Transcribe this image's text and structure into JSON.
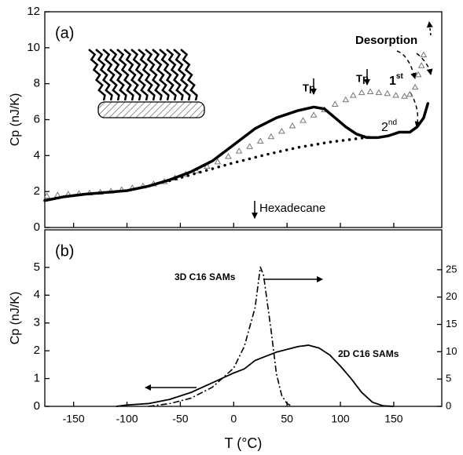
{
  "chart_data": [
    {
      "type": "line",
      "panel_label": "(a)",
      "ylabel": "Cp (nJ/K)",
      "xlim": [
        -177,
        195
      ],
      "xticks": [
        -150,
        -100,
        -50,
        0,
        50,
        100,
        150
      ],
      "ylim": [
        0,
        12
      ],
      "yticks": [
        0,
        2,
        4,
        6,
        8,
        10,
        12
      ],
      "annotations": [
        "Desorption",
        "Tp",
        "Tp",
        "Hexadecane"
      ],
      "first_label": {
        "base": "1",
        "sup": "st"
      },
      "second_label": {
        "base": "2",
        "sup": "nd"
      },
      "series": [
        {
          "style": "markers",
          "color": "#777777",
          "x": [
            -175,
            -165,
            -155,
            -145,
            -135,
            -125,
            -115,
            -105,
            -95,
            -85,
            -75,
            -65,
            -55,
            -45,
            -35,
            -25,
            -15,
            -5,
            5,
            15,
            25,
            35,
            45,
            55,
            65,
            75,
            85,
            95,
            105,
            112,
            120,
            128,
            136,
            144,
            152,
            160,
            165,
            170,
            173,
            176,
            178
          ],
          "values": [
            1.75,
            1.8,
            1.85,
            1.88,
            1.92,
            1.96,
            2.02,
            2.1,
            2.2,
            2.3,
            2.42,
            2.55,
            2.75,
            2.95,
            3.15,
            3.4,
            3.65,
            3.95,
            4.25,
            4.5,
            4.8,
            5.05,
            5.35,
            5.65,
            5.95,
            6.25,
            6.55,
            6.85,
            7.1,
            7.35,
            7.5,
            7.55,
            7.5,
            7.45,
            7.35,
            7.3,
            7.4,
            7.8,
            8.5,
            9.0,
            9.6
          ]
        },
        {
          "style": "thick",
          "color": "#000000",
          "x": [
            -177,
            -160,
            -140,
            -120,
            -100,
            -80,
            -60,
            -40,
            -20,
            0,
            20,
            40,
            60,
            75,
            85,
            95,
            105,
            115,
            125,
            135,
            145,
            155,
            165,
            172,
            178,
            182
          ],
          "values": [
            1.5,
            1.7,
            1.85,
            1.95,
            2.05,
            2.3,
            2.65,
            3.1,
            3.7,
            4.6,
            5.5,
            6.1,
            6.5,
            6.7,
            6.6,
            6.1,
            5.6,
            5.2,
            5.0,
            5.0,
            5.1,
            5.3,
            5.3,
            5.6,
            6.1,
            6.9
          ]
        },
        {
          "style": "dotted",
          "color": "#000000",
          "x": [
            -60,
            -30,
            0,
            30,
            60,
            90,
            110,
            130
          ],
          "values": [
            2.6,
            3.1,
            3.6,
            4.05,
            4.45,
            4.75,
            4.9,
            5.05
          ]
        }
      ]
    },
    {
      "type": "line",
      "panel_label": "(b)",
      "ylabel": "Cp (nJ/K)",
      "xlabel": "T (°C)",
      "xlim": [
        -177,
        195
      ],
      "xticks": [
        -150,
        -100,
        -50,
        0,
        50,
        100,
        150
      ],
      "ylim": [
        0,
        6.35
      ],
      "yticks": [
        0,
        1,
        2,
        3,
        4,
        5
      ],
      "y2lim": [
        0,
        32.3
      ],
      "y2ticks": [
        0,
        5,
        10,
        15,
        20,
        25
      ],
      "annotations": [
        "3D C16 SAMs",
        "2D C16 SAMs"
      ],
      "series": [
        {
          "style": "solid",
          "color": "#000000",
          "x": [
            -110,
            -100,
            -80,
            -60,
            -40,
            -20,
            0,
            10,
            20,
            30,
            40,
            50,
            60,
            70,
            80,
            90,
            100,
            110,
            120,
            130,
            140,
            150
          ],
          "values": [
            0,
            0.05,
            0.1,
            0.25,
            0.5,
            0.85,
            1.2,
            1.35,
            1.65,
            1.8,
            1.95,
            2.05,
            2.15,
            2.2,
            2.1,
            1.85,
            1.45,
            1.0,
            0.5,
            0.15,
            0.02,
            0
          ]
        },
        {
          "style": "dashdot",
          "color": "#000000",
          "axis": "y2",
          "x": [
            -80,
            -60,
            -40,
            -20,
            0,
            10,
            20,
            25,
            28,
            35,
            40,
            45,
            50,
            55
          ],
          "values": [
            0,
            0.5,
            1.5,
            3.5,
            7,
            11,
            18,
            25.5,
            24,
            14,
            6,
            2,
            0.5,
            0
          ]
        }
      ]
    }
  ]
}
